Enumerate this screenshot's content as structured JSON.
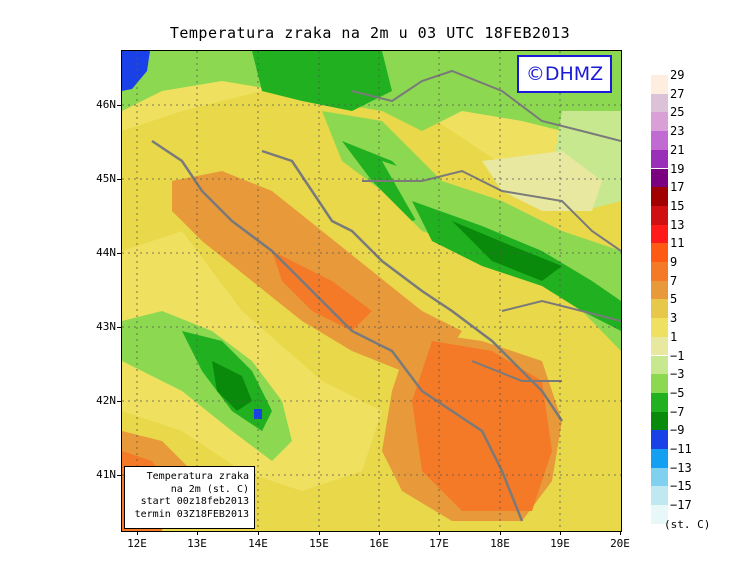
{
  "title": "Temperatura zraka na 2m u 03 UTC 18FEB2013",
  "credit": "©DHMZ",
  "info_box": {
    "line1": "Temperatura zraka",
    "line2": "na 2m (st. C)",
    "line3": "start 00z18feb2013",
    "line4": "termin 03Z18FEB2013"
  },
  "lat_labels": [
    "46N",
    "45N",
    "44N",
    "43N",
    "42N",
    "41N"
  ],
  "lon_labels": [
    "12E",
    "13E",
    "14E",
    "15E",
    "16E",
    "17E",
    "18E",
    "19E",
    "20E"
  ],
  "legend": {
    "unit": "(st. C)",
    "labels": [
      "29",
      "27",
      "25",
      "23",
      "21",
      "19",
      "17",
      "15",
      "13",
      "11",
      "9",
      "7",
      "5",
      "3",
      "1",
      "−1",
      "−3",
      "−5",
      "−7",
      "−9",
      "−11",
      "−13",
      "−15",
      "−17"
    ],
    "colors": [
      "#fdeee0",
      "#dcc2d8",
      "#d9a0d8",
      "#c06ad2",
      "#9a30b8",
      "#7a0080",
      "#a00000",
      "#d01010",
      "#ff1a1a",
      "#ff5a14",
      "#f47a28",
      "#e89a3a",
      "#e8c84a",
      "#f0e060",
      "#e8e8a0",
      "#c8e890",
      "#8cd850",
      "#20b020",
      "#0a8a0a",
      "#1a40e8",
      "#14a0f0",
      "#80d0f0",
      "#c0e8f0",
      "#e8f8f8"
    ]
  }
}
